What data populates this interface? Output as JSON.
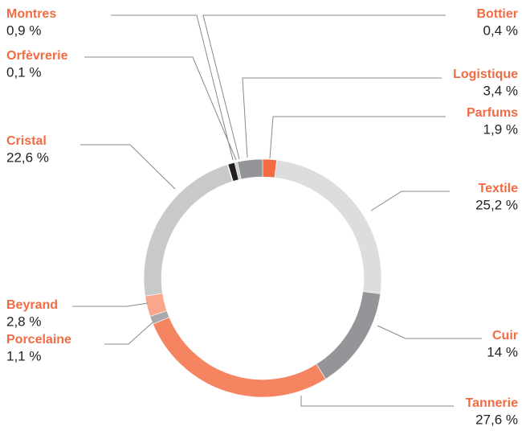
{
  "chart_data": {
    "type": "donut",
    "categories": [
      "Parfums",
      "Textile",
      "Cuir",
      "Tannerie",
      "Porcelaine",
      "Beyrand",
      "Cristal",
      "Orfèvrerie",
      "Montres",
      "Bottier",
      "Logistique"
    ],
    "values": [
      1.9,
      25.2,
      14,
      27.6,
      1.1,
      2.8,
      22.6,
      0.1,
      0.9,
      0.4,
      3.4
    ],
    "value_labels": [
      "1,9 %",
      "25,2 %",
      "14 %",
      "27,6 %",
      "1,1 %",
      "2,8 %",
      "22,6 %",
      "0,1 %",
      "0,9 %",
      "0,4 %",
      "3,4 %"
    ],
    "colors": [
      "#f26b43",
      "#dcdddf",
      "#939598",
      "#f58461",
      "#a7a9ac",
      "#f9a68c",
      "#c8c9cb",
      "#ffffff",
      "#231f20",
      "#d1d3d4",
      "#939598"
    ]
  }
}
